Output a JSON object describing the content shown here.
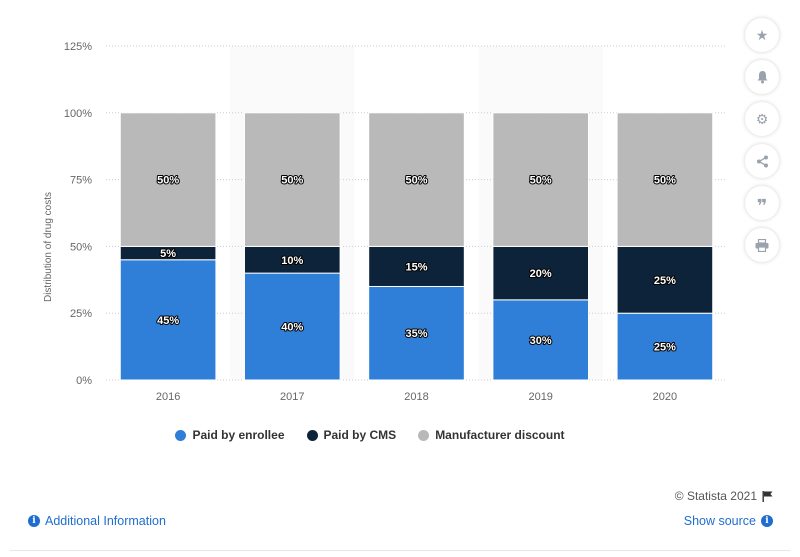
{
  "chart_data": {
    "type": "bar",
    "stacked": true,
    "categories": [
      "2016",
      "2017",
      "2018",
      "2019",
      "2020"
    ],
    "series": [
      {
        "name": "Paid by enrollee",
        "color": "#2f7ed8",
        "values": [
          45,
          40,
          35,
          30,
          25
        ]
      },
      {
        "name": "Paid by CMS",
        "color": "#0d233a",
        "values": [
          5,
          10,
          15,
          20,
          25
        ]
      },
      {
        "name": "Manufacturer discount",
        "color": "#b9b9b9",
        "values": [
          50,
          50,
          50,
          50,
          50
        ]
      }
    ],
    "data_labels": [
      [
        "45%",
        "40%",
        "35%",
        "30%",
        "25%"
      ],
      [
        "5%",
        "10%",
        "15%",
        "20%",
        "25%"
      ],
      [
        "50%",
        "50%",
        "50%",
        "50%",
        "50%"
      ]
    ],
    "ylabel": "Distribution of drug costs",
    "ylim": [
      0,
      125
    ],
    "yticks": [
      0,
      25,
      50,
      75,
      100,
      125
    ],
    "ytick_labels": [
      "0%",
      "25%",
      "50%",
      "75%",
      "100%",
      "125%"
    ],
    "grid": true,
    "legend_position": "bottom"
  },
  "toolbar": {
    "icons": [
      "star-icon",
      "bell-icon",
      "gear-icon",
      "share-icon",
      "quote-icon",
      "print-icon"
    ]
  },
  "footer": {
    "credits": "© Statista 2021",
    "additional_info": "Additional Information",
    "show_source": "Show source"
  }
}
